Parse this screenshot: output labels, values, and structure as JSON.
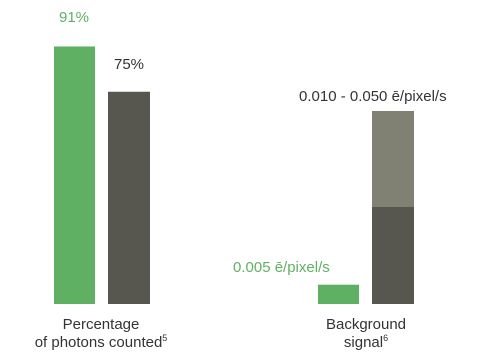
{
  "chart_data": {
    "type": "bar",
    "colors": {
      "green": "#5fb063",
      "dark": "#57574f",
      "light": "#808073"
    },
    "groups": [
      {
        "category_line1": "Percentage",
        "category_line2": "of photons counted",
        "footnote": "5",
        "bars": [
          {
            "series": "green",
            "value": 91,
            "label": "91%"
          },
          {
            "series": "dark",
            "value": 75,
            "label": "75%"
          }
        ]
      },
      {
        "category_line1": "Background",
        "category_line2": "signal",
        "footnote": "6",
        "bars": [
          {
            "series": "green",
            "value": 0.005,
            "label": "0.005 ē/pixel/s"
          },
          {
            "series": "dark",
            "range": [
              0.01,
              0.05
            ],
            "label": "0.010 - 0.050 ē/pixel/s"
          }
        ]
      }
    ]
  }
}
